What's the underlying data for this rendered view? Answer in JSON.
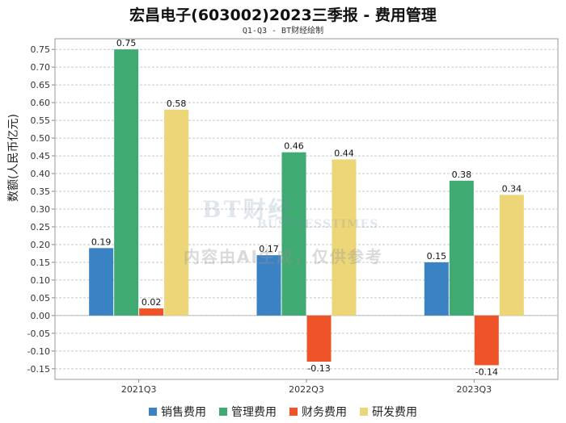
{
  "chart_data": {
    "type": "bar",
    "title": "宏昌电子(603002)2023三季报 - 费用管理",
    "subtitle": "Q1-Q3 - BT财经绘制",
    "ylabel": "数额(人民币亿元)",
    "xlabel": "",
    "categories": [
      "2021Q3",
      "2022Q3",
      "2023Q3"
    ],
    "ylim": [
      -0.18,
      0.78
    ],
    "yticks": [
      "0.75",
      "0.70",
      "0.65",
      "0.60",
      "0.55",
      "0.50",
      "0.45",
      "0.40",
      "0.35",
      "0.30",
      "0.25",
      "0.20",
      "0.15",
      "0.10",
      "0.05",
      "0.00",
      "-0.05",
      "-0.10",
      "-0.15"
    ],
    "grid": true,
    "legend_position": "bottom",
    "series": [
      {
        "name": "销售费用",
        "color": "#3b82c4",
        "values": [
          0.19,
          0.17,
          0.15
        ],
        "labels": [
          "0.19",
          "0.17",
          "0.15"
        ]
      },
      {
        "name": "管理费用",
        "color": "#3faa72",
        "values": [
          0.75,
          0.46,
          0.38
        ],
        "labels": [
          "0.75",
          "0.46",
          "0.38"
        ]
      },
      {
        "name": "财务费用",
        "color": "#ef5428",
        "values": [
          0.02,
          -0.13,
          -0.14
        ],
        "labels": [
          "0.02",
          "-0.13",
          "-0.14"
        ]
      },
      {
        "name": "研发费用",
        "color": "#ecd677",
        "values": [
          0.58,
          0.44,
          0.34
        ],
        "labels": [
          "0.58",
          "0.44",
          "0.34"
        ]
      }
    ]
  },
  "watermark": {
    "logo_text": "BT财经",
    "logo_sub": "BUSINESSTIMES",
    "notice": "内容由AI生成，仅供参考"
  }
}
